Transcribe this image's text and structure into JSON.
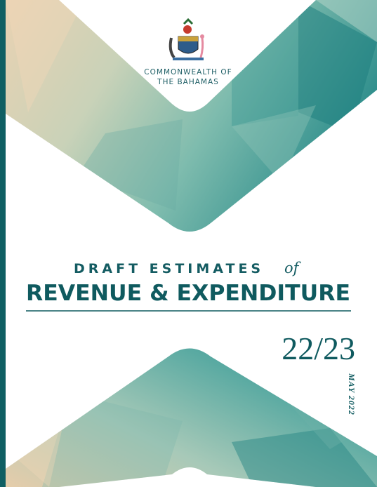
{
  "header": {
    "line1": "COMMONWEALTH OF",
    "line2": "THE BAHAMAS"
  },
  "title": {
    "line1": "DRAFT ESTIMATES",
    "connector": "of",
    "line2": "REVENUE & EXPENDITURE"
  },
  "fiscal_year": "22/23",
  "date": "MAY 2022"
}
